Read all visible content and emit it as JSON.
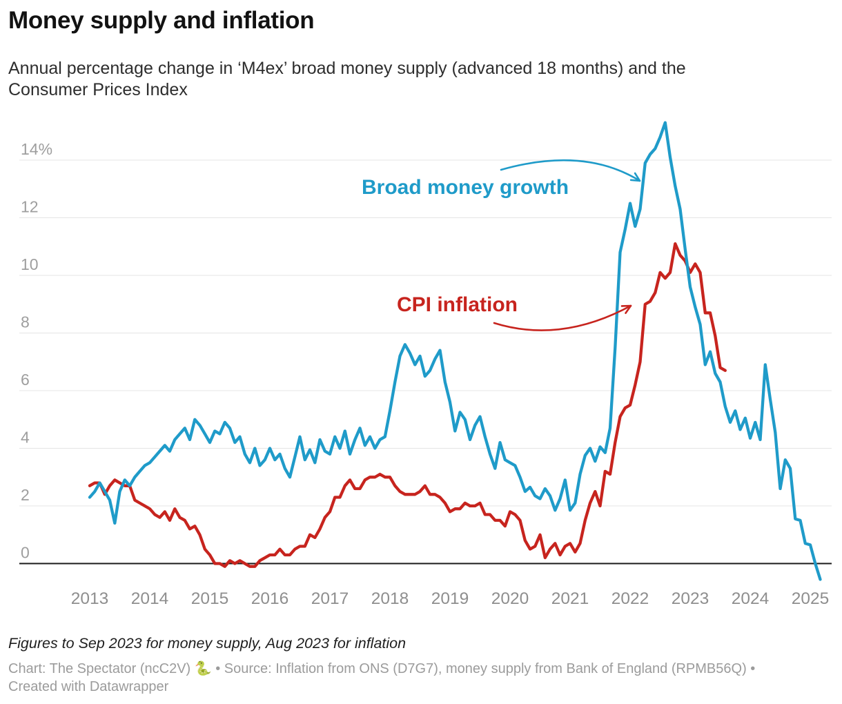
{
  "header": {
    "title": "Money supply and inflation",
    "subtitle_lines": [
      "Annual percentage change in ‘M4ex’ broad money supply (advanced 18 months) and the",
      "Consumer Prices Index"
    ]
  },
  "footer": {
    "note": "Figures to Sep 2023 for money supply, Aug 2023 for inflation",
    "attribution_lines": [
      "Chart: The Spectator (ncC2V) 🐍 • Source: Inflation from ONS (D7G7), money supply from Bank of England (RPMB56Q) •",
      "Created with Datawrapper"
    ]
  },
  "chart_data": {
    "type": "line",
    "title": "Money supply and inflation",
    "subtitle": "Annual percentage change in ‘M4ex’ broad money supply (advanced 18 months) and the Consumer Prices Index",
    "grid": "horizontal-only",
    "legend_position": "inline-annotations",
    "x_axis": {
      "label": "",
      "range": [
        2013.0,
        2025.3
      ],
      "ticks": [
        {
          "value": 2013,
          "label": "2013"
        },
        {
          "value": 2014,
          "label": "2014"
        },
        {
          "value": 2015,
          "label": "2015"
        },
        {
          "value": 2016,
          "label": "2016"
        },
        {
          "value": 2017,
          "label": "2017"
        },
        {
          "value": 2018,
          "label": "2018"
        },
        {
          "value": 2019,
          "label": "2019"
        },
        {
          "value": 2020,
          "label": "2020"
        },
        {
          "value": 2021,
          "label": "2021"
        },
        {
          "value": 2022,
          "label": "2022"
        },
        {
          "value": 2023,
          "label": "2023"
        },
        {
          "value": 2024,
          "label": "2024"
        },
        {
          "value": 2025,
          "label": "2025"
        }
      ]
    },
    "y_axis": {
      "label": "",
      "unit": "%",
      "range": [
        -1.2,
        15.5
      ],
      "ticks": [
        {
          "value": 0,
          "label": "0"
        },
        {
          "value": 2,
          "label": "2"
        },
        {
          "value": 4,
          "label": "4"
        },
        {
          "value": 6,
          "label": "6"
        },
        {
          "value": 8,
          "label": "8"
        },
        {
          "value": 10,
          "label": "10"
        },
        {
          "value": 12,
          "label": "12"
        },
        {
          "value": 14,
          "label": "14%"
        }
      ]
    },
    "annotations": [
      {
        "text": "Broad money growth",
        "color": "#1f9bc9",
        "points_to": "blue series near first 2022 shoulder"
      },
      {
        "text": "CPI inflation",
        "color": "#c7241e",
        "points_to": "red series during 2022 rise"
      }
    ],
    "series": [
      {
        "id": "broad-money-growth",
        "name": "Broad money growth",
        "color": "#1f9bc9",
        "start": "2013-01",
        "end": "2025-03",
        "frequency": "monthly",
        "values": [
          2.3,
          2.5,
          2.8,
          2.5,
          2.2,
          1.4,
          2.5,
          2.9,
          2.7,
          3.0,
          3.2,
          3.4,
          3.5,
          3.7,
          3.9,
          4.1,
          3.9,
          4.3,
          4.5,
          4.7,
          4.3,
          5.0,
          4.8,
          4.5,
          4.2,
          4.6,
          4.5,
          4.9,
          4.7,
          4.2,
          4.4,
          3.8,
          3.5,
          4.0,
          3.4,
          3.6,
          4.0,
          3.6,
          3.8,
          3.3,
          3.0,
          3.7,
          4.4,
          3.6,
          3.95,
          3.5,
          4.3,
          3.9,
          3.8,
          4.4,
          4.0,
          4.6,
          3.8,
          4.3,
          4.7,
          4.1,
          4.4,
          4.0,
          4.3,
          4.4,
          5.3,
          6.3,
          7.2,
          7.6,
          7.3,
          6.9,
          7.2,
          6.5,
          6.7,
          7.1,
          7.4,
          6.3,
          5.6,
          4.6,
          5.25,
          5.0,
          4.3,
          4.8,
          5.1,
          4.4,
          3.8,
          3.3,
          4.2,
          3.6,
          3.5,
          3.4,
          3.0,
          2.5,
          2.65,
          2.35,
          2.25,
          2.6,
          2.35,
          1.85,
          2.25,
          2.9,
          1.85,
          2.1,
          3.1,
          3.75,
          4.0,
          3.55,
          4.05,
          3.85,
          4.7,
          7.5,
          10.8,
          11.6,
          12.5,
          11.7,
          12.3,
          13.9,
          14.2,
          14.4,
          14.8,
          15.3,
          14.1,
          13.1,
          12.3,
          10.9,
          9.6,
          8.9,
          8.3,
          6.9,
          7.35,
          6.6,
          6.3,
          5.45,
          4.9,
          5.3,
          4.65,
          5.05,
          4.35,
          4.9,
          4.3,
          6.9,
          5.7,
          4.55,
          2.6,
          3.6,
          3.3,
          1.55,
          1.5,
          0.7,
          0.65,
          0.0,
          -0.55
        ]
      },
      {
        "id": "cpi-inflation",
        "name": "CPI inflation",
        "color": "#c7241e",
        "start": "2013-01",
        "end": "2023-08",
        "frequency": "monthly",
        "values": [
          2.7,
          2.8,
          2.8,
          2.4,
          2.7,
          2.9,
          2.8,
          2.7,
          2.7,
          2.2,
          2.1,
          2.0,
          1.9,
          1.7,
          1.6,
          1.8,
          1.5,
          1.9,
          1.6,
          1.5,
          1.2,
          1.3,
          1.0,
          0.5,
          0.3,
          0.0,
          0.0,
          -0.1,
          0.1,
          0.0,
          0.1,
          0.0,
          -0.1,
          -0.1,
          0.1,
          0.2,
          0.3,
          0.3,
          0.5,
          0.3,
          0.3,
          0.5,
          0.6,
          0.6,
          1.0,
          0.9,
          1.2,
          1.6,
          1.8,
          2.3,
          2.3,
          2.7,
          2.9,
          2.6,
          2.6,
          2.9,
          3.0,
          3.0,
          3.1,
          3.0,
          3.0,
          2.7,
          2.5,
          2.4,
          2.4,
          2.4,
          2.5,
          2.7,
          2.4,
          2.4,
          2.3,
          2.1,
          1.8,
          1.9,
          1.9,
          2.1,
          2.0,
          2.0,
          2.1,
          1.7,
          1.7,
          1.5,
          1.5,
          1.3,
          1.8,
          1.7,
          1.5,
          0.8,
          0.5,
          0.6,
          1.0,
          0.2,
          0.5,
          0.7,
          0.3,
          0.6,
          0.7,
          0.4,
          0.7,
          1.5,
          2.1,
          2.5,
          2.0,
          3.2,
          3.1,
          4.2,
          5.1,
          5.4,
          5.5,
          6.2,
          7.0,
          9.0,
          9.1,
          9.4,
          10.1,
          9.9,
          10.1,
          11.1,
          10.7,
          10.5,
          10.1,
          10.4,
          10.1,
          8.7,
          8.7,
          7.9,
          6.8,
          6.7
        ]
      }
    ]
  }
}
